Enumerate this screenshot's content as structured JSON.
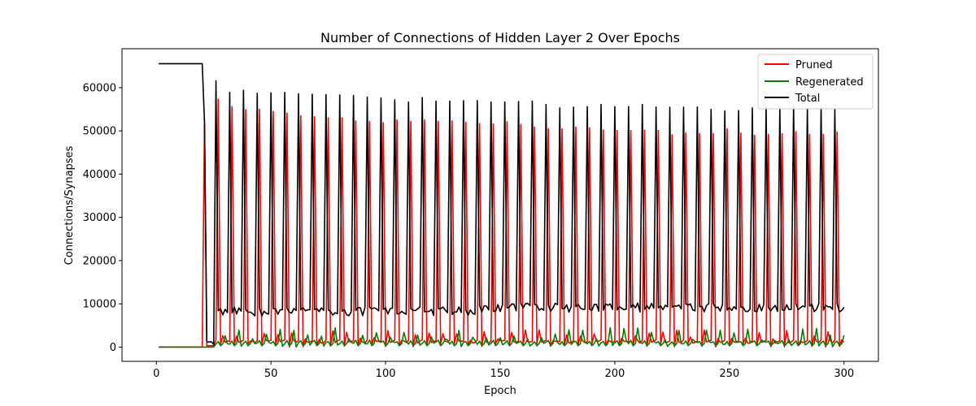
{
  "chart_data": {
    "type": "line",
    "title": "Number of Connections of Hidden Layer 2 Over Epochs",
    "xlabel": "Epoch",
    "ylabel": "Connections/Synapses",
    "xlim": [
      -15,
      315
    ],
    "ylim": [
      -3300,
      69000
    ],
    "xticks": [
      0,
      50,
      100,
      150,
      200,
      250,
      300
    ],
    "yticks": [
      0,
      10000,
      20000,
      30000,
      40000,
      50000,
      60000
    ],
    "grid": false,
    "legend_position": "top-right",
    "pattern": {
      "epochs": [
        1,
        300
      ],
      "initial_total": 65536,
      "pruning_starts": 20,
      "cycle_length": 6,
      "first_spike_epoch": 21,
      "pruned_peaks_approx": [
        51800,
        57300,
        55600,
        54900,
        55000,
        54500,
        54100,
        53500,
        53300,
        53000,
        53000,
        52300,
        52200,
        51900,
        52500,
        52200,
        52500,
        52200,
        52300,
        52000,
        51700,
        51600,
        52100,
        51500,
        50900,
        50500,
        50500,
        50900,
        50700,
        50200,
        50100,
        50100,
        50200,
        50100,
        49100,
        49500,
        49400,
        49400,
        50500,
        49500,
        49000,
        49200,
        49400,
        49800,
        49200,
        49200,
        49700,
        49600
      ],
      "total_peaks_approx": [
        61600,
        58900,
        59400,
        58700,
        58800,
        58900,
        58600,
        58500,
        58400,
        58300,
        58200,
        57800,
        57600,
        57200,
        56700,
        57700,
        56900,
        56900,
        57000,
        57000,
        56700,
        56700,
        56800,
        56900,
        56100,
        55300,
        55500,
        55600,
        56100,
        55600,
        55600,
        56100,
        55500,
        55500,
        55500,
        55500,
        55000,
        54600,
        54700,
        55300,
        55500,
        55400,
        55600,
        55300,
        55500,
        55000,
        55500,
        55500
      ],
      "total_baseline_range": [
        4500,
        10500
      ],
      "regenerated_spike_range": [
        1500,
        4500
      ]
    },
    "series": [
      {
        "name": "Pruned",
        "color": "#ff0000"
      },
      {
        "name": "Regenerated",
        "color": "#008000"
      },
      {
        "name": "Total",
        "color": "#000000"
      }
    ]
  }
}
